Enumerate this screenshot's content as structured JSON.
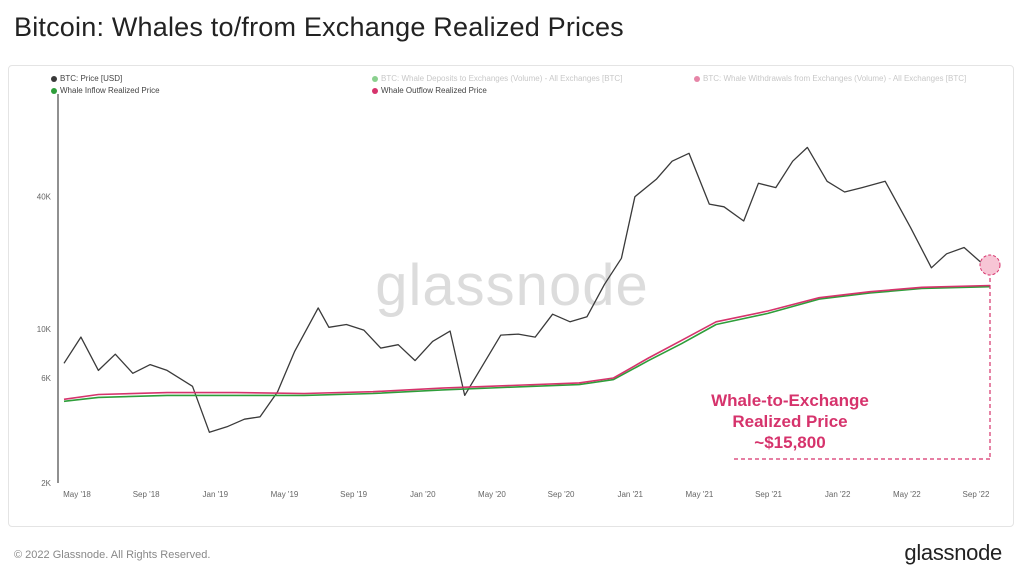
{
  "title": "Bitcoin: Whales to/from Exchange Realized Prices",
  "footer": {
    "copyright": "© 2022 Glassnode. All Rights Reserved.",
    "brand": "glassnode"
  },
  "watermark": "glassnode",
  "annotation": {
    "line1": "Whale-to-Exchange",
    "line2": "Realized Price",
    "line3": "~$15,800"
  },
  "legend": [
    {
      "label": "BTC: Price [USD]",
      "color": "#3a3a3a",
      "faded": false
    },
    {
      "label": "BTC: Whale Deposits to Exchanges (Volume) - All Exchanges [BTC]",
      "color": "#3cb043",
      "faded": true
    },
    {
      "label": "BTC: Whale Withdrawals from Exchanges (Volume) - All Exchanges [BTC]",
      "color": "#d6336c",
      "faded": true
    },
    {
      "label": "Whale Inflow Realized Price",
      "color": "#2e9e3a",
      "faded": false
    },
    {
      "label": "Whale Outflow Realized Price",
      "color": "#d6336c",
      "faded": false
    }
  ],
  "colors": {
    "price": "#3a3a3a",
    "inflow": "#2e9e3a",
    "outflow": "#d6336c",
    "annotation": "#d6336c"
  },
  "chart_data": {
    "type": "line",
    "y_scale": "log",
    "ylim": [
      2000,
      110000
    ],
    "y_ticks": [
      2000,
      6000,
      10000,
      40000
    ],
    "y_tick_labels": [
      "2K",
      "6K",
      "10K",
      "40K"
    ],
    "x_ticks": [
      "May '18",
      "Sep '18",
      "Jan '19",
      "May '19",
      "Sep '19",
      "Jan '20",
      "May '20",
      "Sep '20",
      "Jan '21",
      "May '21",
      "Sep '21",
      "Jan '22",
      "May '22",
      "Sep '22"
    ],
    "x_range": [
      "2018-04-01",
      "2022-09-30"
    ],
    "series": [
      {
        "name": "BTC: Price [USD]",
        "x": [
          "2018-04-01",
          "2018-05-01",
          "2018-06-01",
          "2018-07-01",
          "2018-08-01",
          "2018-09-01",
          "2018-10-01",
          "2018-11-15",
          "2018-12-15",
          "2019-01-15",
          "2019-02-15",
          "2019-03-15",
          "2019-04-15",
          "2019-05-15",
          "2019-06-26",
          "2019-07-15",
          "2019-08-15",
          "2019-09-15",
          "2019-10-15",
          "2019-11-15",
          "2019-12-15",
          "2020-01-15",
          "2020-02-15",
          "2020-03-12",
          "2020-04-15",
          "2020-05-15",
          "2020-06-15",
          "2020-07-15",
          "2020-08-15",
          "2020-09-15",
          "2020-10-15",
          "2020-11-15",
          "2020-12-15",
          "2021-01-08",
          "2021-02-15",
          "2021-03-15",
          "2021-04-14",
          "2021-05-20",
          "2021-06-15",
          "2021-07-20",
          "2021-08-15",
          "2021-09-15",
          "2021-10-15",
          "2021-11-10",
          "2021-12-15",
          "2022-01-15",
          "2022-02-15",
          "2022-03-28",
          "2022-05-12",
          "2022-06-18",
          "2022-07-15",
          "2022-08-15",
          "2022-09-15",
          "2022-09-30"
        ],
        "y": [
          7000,
          9200,
          6500,
          7700,
          6300,
          6900,
          6500,
          5500,
          3400,
          3600,
          3900,
          4000,
          5200,
          7900,
          12500,
          10200,
          10500,
          9900,
          8200,
          8500,
          7200,
          8800,
          9800,
          5000,
          7000,
          9400,
          9500,
          9200,
          11700,
          10800,
          11400,
          16000,
          21000,
          40000,
          48000,
          58000,
          63000,
          37000,
          36000,
          31000,
          46000,
          44000,
          58000,
          67000,
          47000,
          42000,
          44000,
          47000,
          29000,
          19000,
          22000,
          23500,
          20000,
          19500
        ]
      },
      {
        "name": "Whale Inflow Realized Price",
        "x": [
          "2018-04-01",
          "2018-06-01",
          "2018-10-01",
          "2019-02-01",
          "2019-06-01",
          "2019-10-01",
          "2020-02-01",
          "2020-06-01",
          "2020-10-01",
          "2020-12-01",
          "2021-02-01",
          "2021-04-01",
          "2021-06-01",
          "2021-09-01",
          "2021-12-01",
          "2022-03-01",
          "2022-06-01",
          "2022-09-30"
        ],
        "y": [
          4700,
          4900,
          5000,
          5000,
          5000,
          5100,
          5300,
          5450,
          5600,
          5900,
          7200,
          8600,
          10500,
          11800,
          13700,
          14600,
          15300,
          15600
        ]
      },
      {
        "name": "Whale Outflow Realized Price",
        "x": [
          "2018-04-01",
          "2018-06-01",
          "2018-10-01",
          "2019-02-01",
          "2019-06-01",
          "2019-10-01",
          "2020-02-01",
          "2020-06-01",
          "2020-10-01",
          "2020-12-01",
          "2021-02-01",
          "2021-04-01",
          "2021-06-01",
          "2021-09-01",
          "2021-12-01",
          "2022-03-01",
          "2022-06-01",
          "2022-09-30"
        ],
        "y": [
          4800,
          5050,
          5150,
          5150,
          5100,
          5200,
          5400,
          5550,
          5700,
          6000,
          7400,
          8900,
          10800,
          12100,
          13900,
          14800,
          15500,
          15800
        ]
      }
    ]
  }
}
